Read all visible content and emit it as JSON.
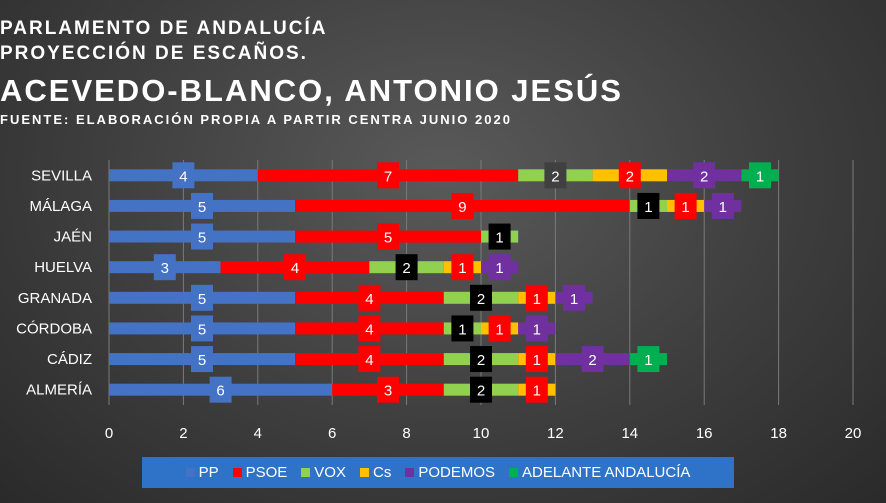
{
  "header": {
    "line1": "PARLAMENTO DE ANDALUCÍA",
    "line2": "PROYECCIÓN DE ESCAÑOS.",
    "line3": "ACEVEDO-BLANCO, ANTONIO JESÚS",
    "line4": "FUENTE: ELABORACIÓN PROPIA A PARTIR CENTRA JUNIO 2020"
  },
  "colors": {
    "PP": "#4472c4",
    "PSOE": "#ff0000",
    "VOX": "#92d050",
    "Cs": "#ffc000",
    "PODEMOS": "#7030a0",
    "ADELANTE ANDALUCÍA": "#00b050",
    "legend_bg": "#2f73c9"
  },
  "chart_data": {
    "type": "bar",
    "orientation": "horizontal",
    "stacked": true,
    "categories": [
      "SEVILLA",
      "MÁLAGA",
      "JAÉN",
      "HUELVA",
      "GRANADA",
      "CÓRDOBA",
      "CÁDIZ",
      "ALMERÍA"
    ],
    "series": [
      {
        "name": "PP",
        "values": [
          4,
          5,
          5,
          3,
          5,
          5,
          5,
          6
        ]
      },
      {
        "name": "PSOE",
        "values": [
          7,
          9,
          5,
          4,
          4,
          4,
          4,
          3
        ]
      },
      {
        "name": "VOX",
        "values": [
          2,
          1,
          1,
          2,
          2,
          1,
          2,
          2
        ]
      },
      {
        "name": "Cs",
        "values": [
          2,
          1,
          0,
          1,
          1,
          1,
          1,
          1
        ]
      },
      {
        "name": "PODEMOS",
        "values": [
          2,
          1,
          0,
          1,
          1,
          1,
          2,
          0
        ]
      },
      {
        "name": "ADELANTE ANDALUCÍA",
        "values": [
          1,
          0,
          0,
          0,
          0,
          0,
          1,
          0
        ]
      }
    ],
    "xlim": [
      0,
      20
    ],
    "xticks": [
      "0",
      "2",
      "4",
      "6",
      "8",
      "10",
      "12",
      "14",
      "16",
      "18",
      "20"
    ],
    "grid": "vertical",
    "legend_position": "bottom"
  }
}
